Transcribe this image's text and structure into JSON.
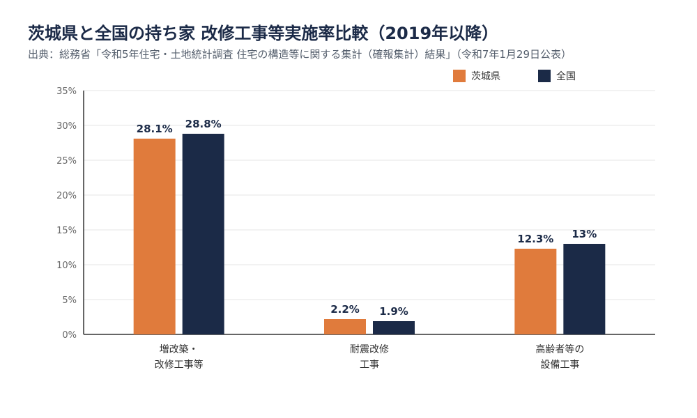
{
  "title": "茨城県と全国の持ち家 改修工事等実施率比較（2019年以降）",
  "subtitle": "出典：総務省「令和5年住宅・土地統計調査 住宅の構造等に関する集計（確報集計）結果」（令和7年1月29日公表）",
  "colors": {
    "ibaraki": "#e07b3c",
    "national": "#1b2a47",
    "grid": "#e6e6e6",
    "axis": "#333333"
  },
  "chart_data": {
    "type": "bar",
    "title": "茨城県と全国の持ち家 改修工事等実施率比較（2019年以降）",
    "categories": [
      [
        "増改築・",
        "改修工事等"
      ],
      [
        "耐震改修",
        "工事"
      ],
      [
        "高齢者等の",
        "設備工事"
      ]
    ],
    "series": [
      {
        "name": "茨城県",
        "values": [
          28.1,
          2.2,
          12.3
        ],
        "labels": [
          "28.1%",
          "2.2%",
          "12.3%"
        ],
        "color": "#e07b3c"
      },
      {
        "name": "全国",
        "values": [
          28.8,
          1.9,
          13.0
        ],
        "labels": [
          "28.8%",
          "1.9%",
          "13%"
        ],
        "color": "#1b2a47"
      }
    ],
    "ylim": [
      0,
      35
    ],
    "yticks": [
      0,
      5,
      10,
      15,
      20,
      25,
      30,
      35
    ],
    "ytick_labels": [
      "0%",
      "5%",
      "10%",
      "15%",
      "20%",
      "25%",
      "30%",
      "35%"
    ],
    "grid": true,
    "legend": "top-right"
  }
}
